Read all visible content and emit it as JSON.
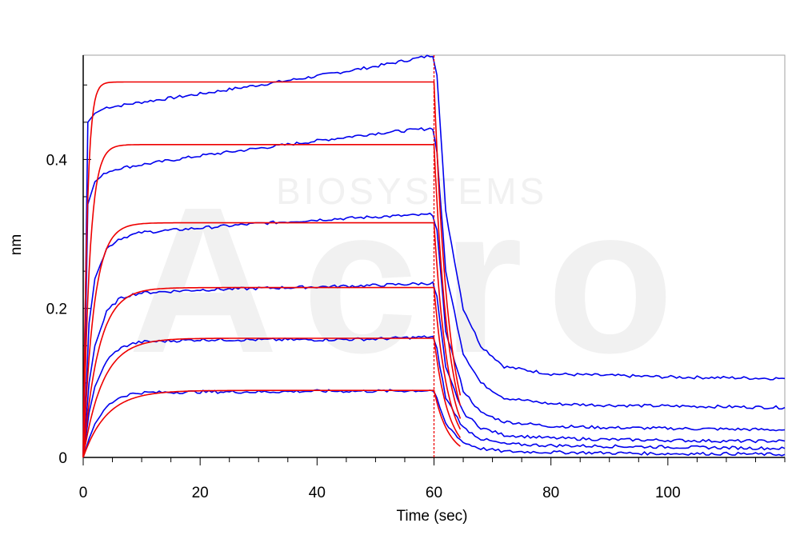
{
  "chart_data": {
    "type": "line",
    "title": "",
    "xlabel": "Time (sec)",
    "ylabel": "nm",
    "xlim": [
      0,
      120
    ],
    "ylim": [
      0,
      0.54
    ],
    "x_ticks": [
      0,
      20,
      40,
      60,
      80,
      100
    ],
    "x_tick_labels": [
      "0",
      "20",
      "40",
      "60",
      "80",
      "100"
    ],
    "y_ticks": [
      0,
      0.2,
      0.4
    ],
    "y_tick_labels": [
      "0",
      "0.2",
      "0.4"
    ],
    "grid": false,
    "legend": "none",
    "phase_boundary_x": 60,
    "watermark": {
      "large": "Acro",
      "small": "BIOSYSTEMS"
    },
    "colors": {
      "measured": "#0000ee",
      "fit": "#ee0000",
      "axis": "#000000",
      "frame": "#a0a0a0",
      "watermark": "#f1f1f1"
    },
    "measured": [
      {
        "x": [
          0,
          0.8,
          2,
          4,
          6,
          10,
          20,
          30,
          40,
          50,
          59.8,
          60.5,
          62,
          65,
          68,
          72,
          80,
          90,
          100,
          110,
          120
        ],
        "y": [
          0,
          0.45,
          0.462,
          0.47,
          0.472,
          0.477,
          0.488,
          0.5,
          0.512,
          0.525,
          0.54,
          0.515,
          0.33,
          0.2,
          0.15,
          0.122,
          0.112,
          0.11,
          0.108,
          0.107,
          0.106
        ]
      },
      {
        "x": [
          0,
          0.8,
          2,
          4,
          6,
          10,
          20,
          30,
          40,
          50,
          59.8,
          60.5,
          62,
          65,
          68,
          72,
          80,
          90,
          100,
          110,
          120
        ],
        "y": [
          0,
          0.34,
          0.37,
          0.383,
          0.388,
          0.393,
          0.405,
          0.415,
          0.425,
          0.435,
          0.442,
          0.41,
          0.25,
          0.14,
          0.1,
          0.08,
          0.072,
          0.07,
          0.069,
          0.068,
          0.067
        ]
      },
      {
        "x": [
          0,
          1,
          2,
          4,
          6,
          8,
          10,
          20,
          30,
          40,
          50,
          59.8,
          60.5,
          62,
          65,
          68,
          72,
          80,
          90,
          100,
          110,
          120
        ],
        "y": [
          0,
          0.18,
          0.24,
          0.28,
          0.293,
          0.298,
          0.302,
          0.308,
          0.314,
          0.319,
          0.323,
          0.326,
          0.305,
          0.17,
          0.09,
          0.06,
          0.048,
          0.042,
          0.04,
          0.039,
          0.038,
          0.037
        ]
      },
      {
        "x": [
          0,
          1,
          2,
          4,
          6,
          8,
          10,
          20,
          30,
          40,
          50,
          59.8,
          60.5,
          62,
          65,
          68,
          72,
          80,
          90,
          100,
          110,
          120
        ],
        "y": [
          0,
          0.1,
          0.15,
          0.195,
          0.212,
          0.218,
          0.221,
          0.225,
          0.227,
          0.229,
          0.231,
          0.234,
          0.215,
          0.12,
          0.06,
          0.04,
          0.03,
          0.026,
          0.024,
          0.023,
          0.022,
          0.022
        ]
      },
      {
        "x": [
          0,
          1,
          2,
          4,
          6,
          8,
          10,
          20,
          30,
          40,
          50,
          59.8,
          60.5,
          62,
          65,
          68,
          72,
          80,
          90,
          100,
          110,
          120
        ],
        "y": [
          0,
          0.06,
          0.095,
          0.13,
          0.145,
          0.152,
          0.155,
          0.158,
          0.158,
          0.158,
          0.159,
          0.162,
          0.145,
          0.08,
          0.04,
          0.025,
          0.018,
          0.016,
          0.015,
          0.014,
          0.013,
          0.012
        ]
      },
      {
        "x": [
          0,
          1,
          2,
          4,
          6,
          8,
          10,
          20,
          30,
          40,
          50,
          59.8,
          60.5,
          62,
          65,
          68,
          72,
          80,
          90,
          100,
          110,
          120
        ],
        "y": [
          0,
          0.025,
          0.045,
          0.068,
          0.08,
          0.085,
          0.087,
          0.088,
          0.088,
          0.089,
          0.089,
          0.09,
          0.078,
          0.045,
          0.02,
          0.012,
          0.008,
          0.007,
          0.006,
          0.005,
          0.005,
          0.004
        ]
      }
    ],
    "fits": [
      {
        "plateau": 0.504,
        "k_on": 1.5,
        "k_off": 0.4,
        "x_end": 64.5
      },
      {
        "plateau": 0.42,
        "k_on": 0.9,
        "k_off": 0.4,
        "x_end": 64.5
      },
      {
        "plateau": 0.315,
        "k_on": 0.55,
        "k_off": 0.4,
        "x_end": 64.5
      },
      {
        "plateau": 0.228,
        "k_on": 0.38,
        "k_off": 0.4,
        "x_end": 64.5
      },
      {
        "plateau": 0.16,
        "k_on": 0.3,
        "k_off": 0.4,
        "x_end": 64.5
      },
      {
        "plateau": 0.09,
        "k_on": 0.25,
        "k_off": 0.4,
        "x_end": 64.5
      }
    ]
  }
}
